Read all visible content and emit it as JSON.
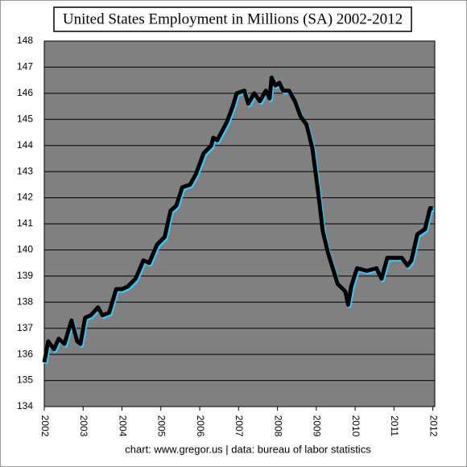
{
  "chart_data": {
    "type": "line",
    "title": "United States Employment in Millions (SA) 2002-2012",
    "footer": "chart:  www.gregor.us   |  data:  bureau of labor statistics",
    "x": [
      2002.0,
      2002.1,
      2002.25,
      2002.37,
      2002.52,
      2002.7,
      2002.85,
      2002.93,
      2003.05,
      2003.2,
      2003.38,
      2003.5,
      2003.67,
      2003.85,
      2004.0,
      2004.15,
      2004.35,
      2004.55,
      2004.7,
      2004.9,
      2005.1,
      2005.25,
      2005.4,
      2005.55,
      2005.75,
      2005.9,
      2006.1,
      2006.3,
      2006.35,
      2006.45,
      2006.7,
      2006.85,
      2006.95,
      2007.15,
      2007.25,
      2007.4,
      2007.55,
      2007.7,
      2007.8,
      2007.85,
      2007.95,
      2008.05,
      2008.15,
      2008.3,
      2008.45,
      2008.6,
      2008.75,
      2008.9,
      2009.05,
      2009.17,
      2009.3,
      2009.55,
      2009.75,
      2009.82,
      2009.9,
      2010.05,
      2010.3,
      2010.55,
      2010.68,
      2010.83,
      2011.2,
      2011.35,
      2011.45,
      2011.6,
      2011.8,
      2011.93,
      2012.0
    ],
    "series": [
      {
        "name": "Employment",
        "color": "#000000",
        "values": [
          135.7,
          136.5,
          136.2,
          136.6,
          136.4,
          137.3,
          136.5,
          136.4,
          137.4,
          137.5,
          137.8,
          137.5,
          137.6,
          138.5,
          138.5,
          138.6,
          138.9,
          139.6,
          139.5,
          140.2,
          140.5,
          141.5,
          141.7,
          142.4,
          142.5,
          142.9,
          143.7,
          144.0,
          144.3,
          144.2,
          144.9,
          145.5,
          146.0,
          146.1,
          145.6,
          146.0,
          145.7,
          146.1,
          145.8,
          146.6,
          146.3,
          146.4,
          146.1,
          146.1,
          145.7,
          145.1,
          144.8,
          143.9,
          142.2,
          140.7,
          139.9,
          138.7,
          138.4,
          137.9,
          138.6,
          139.3,
          139.2,
          139.3,
          138.9,
          139.7,
          139.7,
          139.4,
          139.6,
          140.6,
          140.8,
          141.6,
          141.6
        ]
      }
    ],
    "xlim": [
      2002,
      2012.05
    ],
    "xticks": [
      2002,
      2003,
      2004,
      2005,
      2006,
      2007,
      2008,
      2009,
      2010,
      2011,
      2012
    ],
    "ylim": [
      134,
      148
    ],
    "yticks": [
      134,
      135,
      136,
      137,
      138,
      139,
      140,
      141,
      142,
      143,
      144,
      145,
      146,
      147,
      148
    ],
    "grid": true,
    "glow_color": "#33ccff",
    "plot_background": "#808080"
  }
}
